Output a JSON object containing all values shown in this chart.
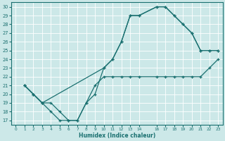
{
  "xlabel": "Humidex (Indice chaleur)",
  "xlim": [
    -0.5,
    23.5
  ],
  "ylim": [
    16.5,
    30.5
  ],
  "xticks": [
    0,
    1,
    2,
    3,
    4,
    5,
    6,
    7,
    8,
    9,
    10,
    11,
    12,
    13,
    14,
    16,
    17,
    18,
    19,
    20,
    21,
    22,
    23
  ],
  "yticks": [
    17,
    18,
    19,
    20,
    21,
    22,
    23,
    24,
    25,
    26,
    27,
    28,
    29,
    30
  ],
  "bg_color": "#cce8e8",
  "line_color": "#1a7070",
  "grid_color": "#ffffff",
  "line1_x": [
    1,
    2,
    3,
    4,
    5,
    6,
    7,
    8,
    9,
    10,
    11,
    12,
    13,
    14,
    16,
    17,
    18,
    19,
    20,
    21,
    22,
    23
  ],
  "line1_y": [
    21,
    20,
    19,
    18,
    17,
    17,
    17,
    19,
    20,
    23,
    24,
    26,
    29,
    29,
    30,
    30,
    29,
    28,
    27,
    25,
    25,
    25
  ],
  "line2_x": [
    1,
    2,
    3,
    4,
    5,
    6,
    7,
    8,
    9,
    10,
    11,
    12,
    13,
    14,
    16,
    17,
    18,
    19,
    20,
    21,
    22,
    23
  ],
  "line2_y": [
    21,
    20,
    19,
    19,
    18,
    17,
    17,
    19,
    21,
    22,
    22,
    22,
    22,
    22,
    22,
    22,
    22,
    22,
    22,
    22,
    23,
    24
  ],
  "line3_x": [
    1,
    2,
    3,
    10,
    11,
    12,
    13,
    14,
    16,
    17,
    18,
    19,
    20,
    21,
    22,
    23
  ],
  "line3_y": [
    21,
    20,
    19,
    23,
    24,
    26,
    29,
    29,
    30,
    30,
    29,
    28,
    27,
    25,
    25,
    25
  ]
}
